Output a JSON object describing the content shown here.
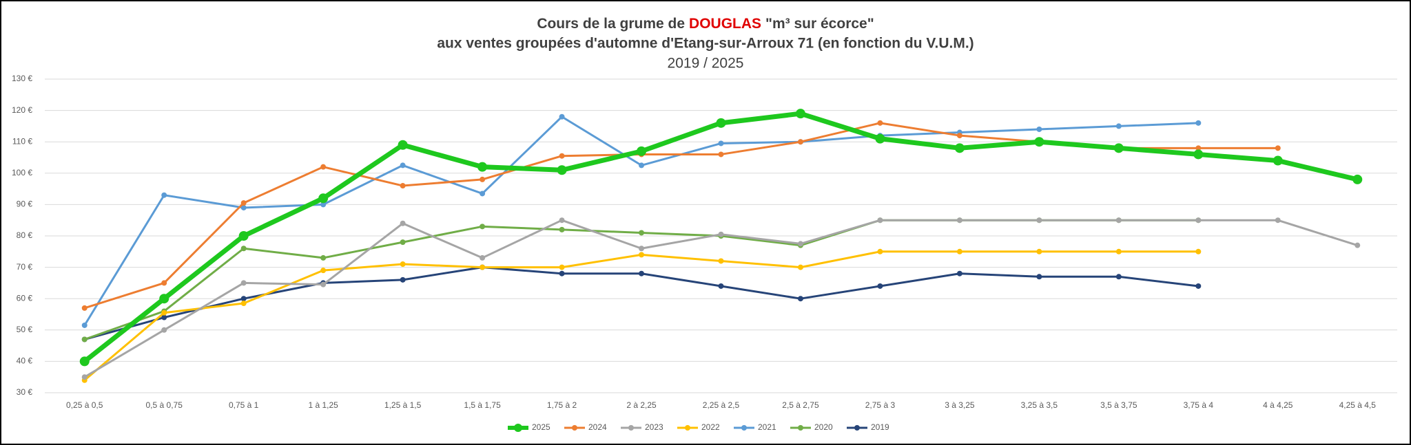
{
  "chart_data": {
    "type": "line",
    "title": [
      "Cours de la grume de",
      "DOUGLAS",
      "\"m³ sur écorce\""
    ],
    "subtitle": [
      "aux ventes groupées d'automne d'Etang-sur-Arroux 71 (en fonction du V.U.M.)",
      "2019 / 2025"
    ],
    "categories": [
      "0,25 à 0,5",
      "0,5 à 0,75",
      "0,75 à 1",
      "1 à 1,25",
      "1,25 à 1,5",
      "1,5 à 1,75",
      "1,75 à 2",
      "2 à 2,25",
      "2,25 à 2,5",
      "2,5 à 2,75",
      "2,75 à 3",
      "3 à 3,25",
      "3,25 à 3,5",
      "3,5 à 3,75",
      "3,75 à 4",
      "4 à 4,25",
      "4,25 à 4,5"
    ],
    "series": [
      {
        "name": "2025",
        "color": "#1ec81e",
        "values": [
          40,
          60,
          80,
          92,
          109,
          102,
          101,
          107,
          116,
          119,
          111,
          108,
          110,
          108,
          106,
          104,
          98
        ]
      },
      {
        "name": "2024",
        "color": "#ed7d31",
        "values": [
          57,
          65,
          90.5,
          102,
          96,
          98,
          105.5,
          106,
          106,
          110,
          116,
          112,
          110,
          108,
          108,
          108,
          null
        ]
      },
      {
        "name": "2023",
        "color": "#a5a5a5",
        "values": [
          35,
          50,
          65,
          64.5,
          84,
          73,
          85,
          76,
          80.5,
          77.5,
          85,
          85,
          85,
          85,
          85,
          85,
          77
        ]
      },
      {
        "name": "2022",
        "color": "#ffc000",
        "values": [
          34,
          55.5,
          58.5,
          69,
          71,
          70,
          70,
          74,
          72,
          70,
          75,
          75,
          75,
          75,
          75,
          null,
          null
        ]
      },
      {
        "name": "2021",
        "color": "#5b9bd5",
        "values": [
          51.5,
          93,
          89,
          90,
          102.5,
          93.5,
          118,
          102.5,
          109.5,
          110,
          112,
          113,
          114,
          115,
          116,
          null,
          null
        ]
      },
      {
        "name": "2020",
        "color": "#70ad47",
        "values": [
          47,
          56,
          76,
          73,
          78,
          83,
          82,
          81,
          80,
          77,
          85,
          85,
          85,
          85,
          85,
          null,
          null
        ]
      },
      {
        "name": "2019",
        "color": "#264478",
        "values": [
          47,
          54,
          60,
          65,
          66,
          70,
          68,
          68,
          64,
          60,
          64,
          68,
          67,
          67,
          64,
          null,
          null
        ]
      }
    ],
    "ylim": [
      30,
      130
    ],
    "yticks": [
      {
        "value": 30,
        "label": "30 €"
      },
      {
        "value": 40,
        "label": "40 €"
      },
      {
        "value": 50,
        "label": "50 €"
      },
      {
        "value": 60,
        "label": "60 €"
      },
      {
        "value": 70,
        "label": "70 €"
      },
      {
        "value": 80,
        "label": "80 €"
      },
      {
        "value": 90,
        "label": "90 €"
      },
      {
        "value": 100,
        "label": "100 €"
      },
      {
        "value": 110,
        "label": "110 €"
      },
      {
        "value": 120,
        "label": "120 €"
      },
      {
        "value": 130,
        "label": "130 €"
      }
    ],
    "grid": true,
    "legend": "bottom"
  }
}
